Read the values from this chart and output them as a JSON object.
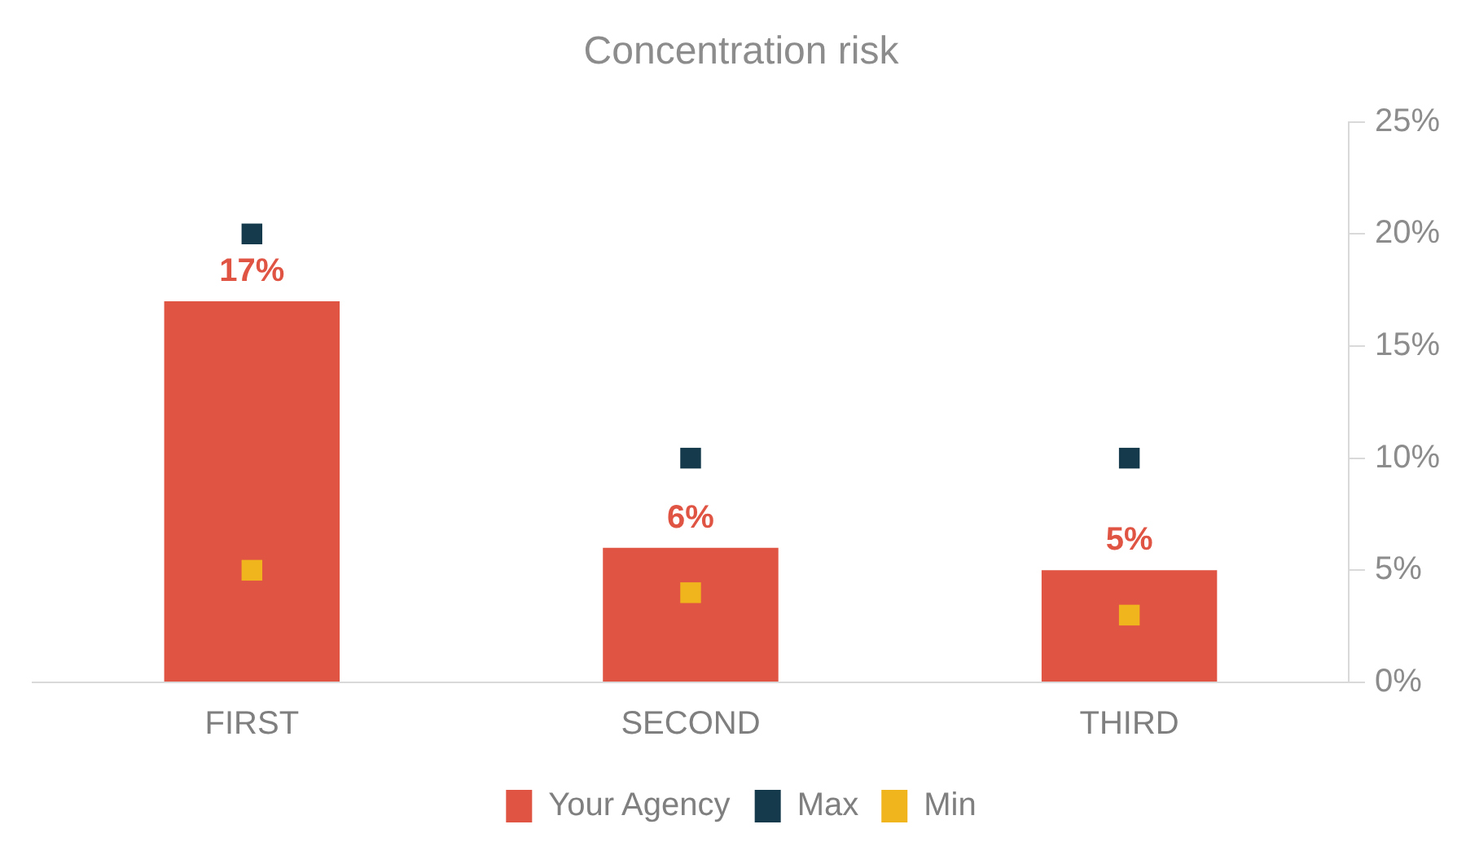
{
  "chart_data": {
    "type": "bar",
    "title": "Concentration risk",
    "categories": [
      "FIRST",
      "SECOND",
      "THIRD"
    ],
    "series": [
      {
        "name": "Your Agency",
        "color": "#e05444",
        "values": [
          17,
          6,
          5
        ],
        "value_labels": [
          "17%",
          "6%",
          "5%"
        ]
      },
      {
        "name": "Max",
        "type": "scatter",
        "color": "#143a4c",
        "values": [
          20,
          10,
          10
        ]
      },
      {
        "name": "Min",
        "type": "scatter",
        "color": "#f0b41c",
        "values": [
          5,
          4,
          3
        ]
      }
    ],
    "ylim": [
      0,
      25
    ],
    "yticks": [
      {
        "value": 0,
        "label": "0%"
      },
      {
        "value": 5,
        "label": "5%"
      },
      {
        "value": 10,
        "label": "10%"
      },
      {
        "value": 15,
        "label": "15%"
      },
      {
        "value": 20,
        "label": "20%"
      },
      {
        "value": 25,
        "label": "25%"
      }
    ],
    "grid": false,
    "legend": "bottom",
    "marker": "square"
  }
}
